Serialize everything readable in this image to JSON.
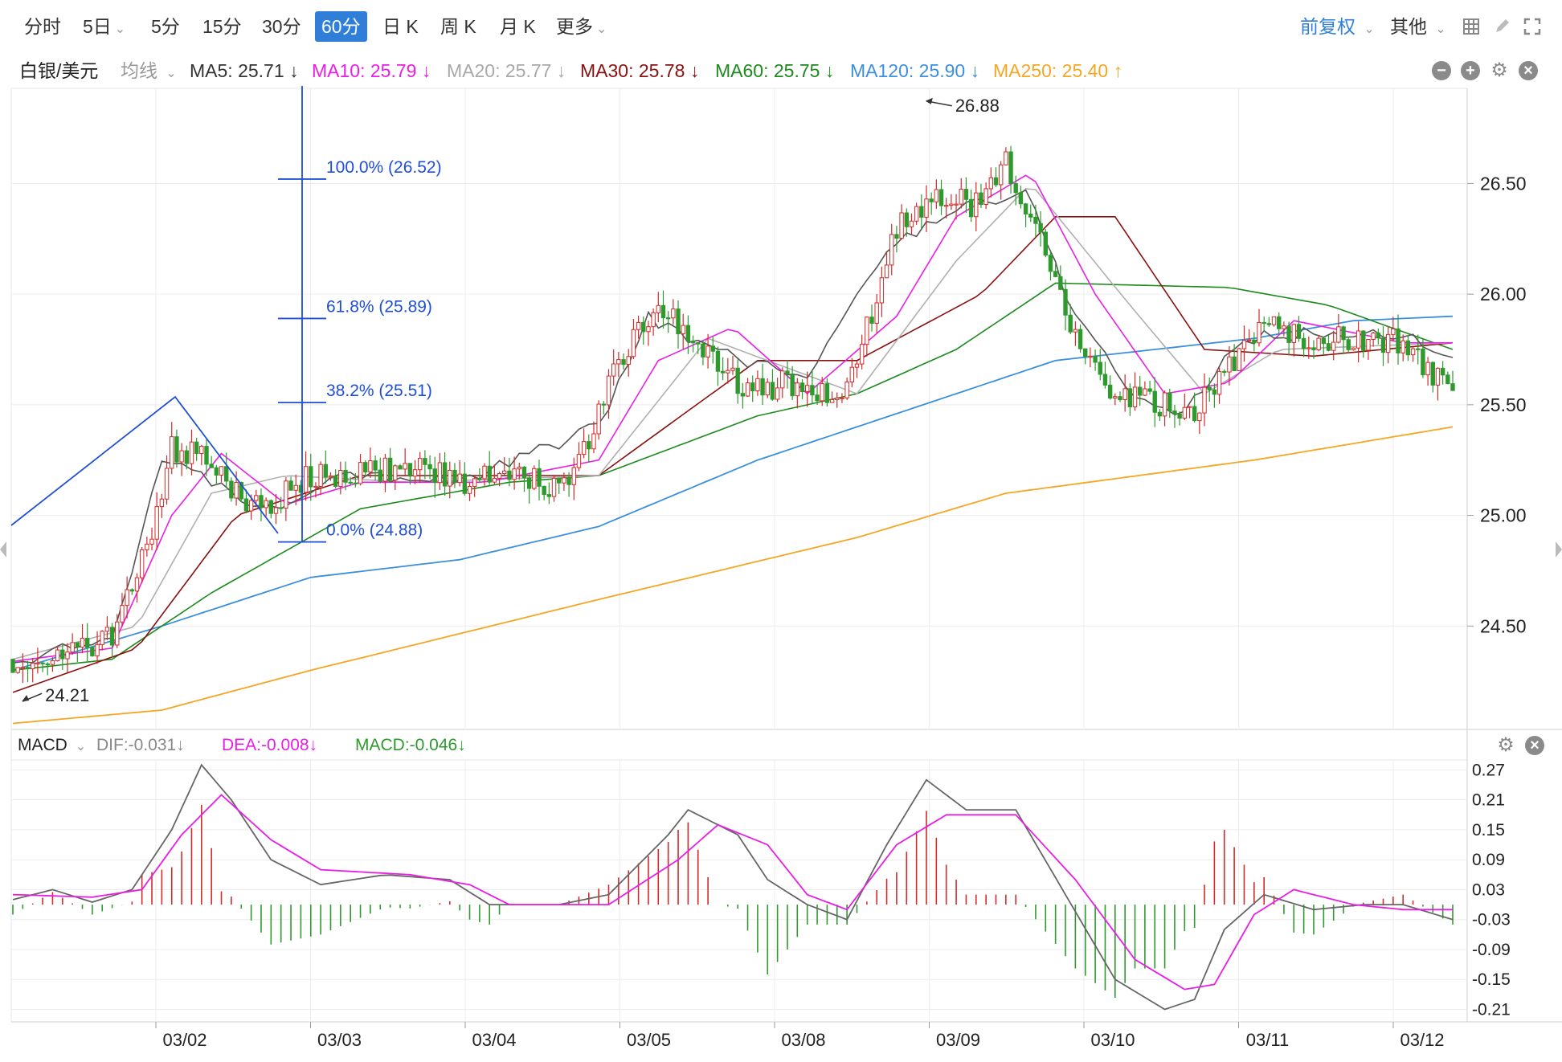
{
  "toolbar": {
    "periods": [
      {
        "label": "分时",
        "dropdown": false
      },
      {
        "label": "5日",
        "dropdown": true
      },
      {
        "label": "5分",
        "dropdown": false
      },
      {
        "label": "15分",
        "dropdown": false
      },
      {
        "label": "30分",
        "dropdown": false
      },
      {
        "label": "60分",
        "dropdown": false,
        "active": true
      },
      {
        "label": "日 K",
        "dropdown": false
      },
      {
        "label": "周 K",
        "dropdown": false
      },
      {
        "label": "月 K",
        "dropdown": false
      },
      {
        "label": "更多",
        "dropdown": true
      }
    ],
    "adjust_label": "前复权",
    "other_label": "其他",
    "icons": [
      "grid-icon",
      "pen-icon",
      "fullscreen-icon"
    ]
  },
  "legend": {
    "symbol": "白银/美元",
    "ma_type": "均线",
    "items": [
      {
        "text": "MA5: 25.71 ↓",
        "color": "#333333"
      },
      {
        "text": "MA10: 25.79 ↓",
        "color": "#e91ee6"
      },
      {
        "text": "MA20: 25.77 ↓",
        "color": "#a8a8a8"
      },
      {
        "text": "MA30: 25.78 ↓",
        "color": "#8b1010"
      },
      {
        "text": "MA60: 25.75 ↓",
        "color": "#1c8a1c"
      },
      {
        "text": "MA120: 25.90 ↓",
        "color": "#3b8fdc"
      },
      {
        "text": "MA250: 25.40 ↑",
        "color": "#f5a623"
      }
    ]
  },
  "macd_legend": {
    "name": "MACD",
    "items": [
      {
        "text": "DIF:-0.031↓",
        "color": "#888888"
      },
      {
        "text": "DEA:-0.008↓",
        "color": "#e91ee6"
      },
      {
        "text": "MACD:-0.046↓",
        "color": "#2e9a2e"
      }
    ]
  },
  "chart_data": [
    {
      "type": "candlestick",
      "title": "白银/美元 60分",
      "x_dates": [
        "03/02",
        "03/03",
        "03/04",
        "03/05",
        "03/08",
        "03/09",
        "03/10",
        "03/11",
        "03/12"
      ],
      "y_ticks": [
        "26.50",
        "26.00",
        "25.50",
        "25.00",
        "24.50"
      ],
      "ylim": [
        24.04,
        26.93
      ],
      "annotations": {
        "high": "26.88",
        "low": "24.21"
      },
      "fibonacci": [
        {
          "label": "100.0% (26.52)",
          "value": 26.52
        },
        {
          "label": "61.8% (25.89)",
          "value": 25.89
        },
        {
          "label": "38.2% (25.51)",
          "value": 25.51
        },
        {
          "label": "0.0% (24.88)",
          "value": 24.88
        }
      ],
      "approx_close_path": [
        [
          0,
          24.35
        ],
        [
          10,
          24.36
        ],
        [
          20,
          24.45
        ],
        [
          27,
          24.85
        ],
        [
          32,
          25.3
        ],
        [
          38,
          25.28
        ],
        [
          47,
          25.05
        ],
        [
          52,
          25.05
        ],
        [
          60,
          25.18
        ],
        [
          70,
          25.18
        ],
        [
          80,
          25.22
        ],
        [
          92,
          25.15
        ],
        [
          100,
          25.22
        ],
        [
          110,
          25.12
        ],
        [
          115,
          25.3
        ],
        [
          122,
          25.7
        ],
        [
          130,
          25.95
        ],
        [
          138,
          25.8
        ],
        [
          148,
          25.55
        ],
        [
          156,
          25.6
        ],
        [
          168,
          25.55
        ],
        [
          178,
          26.3
        ],
        [
          186,
          26.45
        ],
        [
          194,
          26.4
        ],
        [
          200,
          26.6
        ],
        [
          206,
          26.3
        ],
        [
          214,
          25.8
        ],
        [
          222,
          25.55
        ],
        [
          230,
          25.5
        ],
        [
          238,
          25.48
        ],
        [
          246,
          25.7
        ],
        [
          252,
          25.85
        ],
        [
          262,
          25.8
        ],
        [
          272,
          25.8
        ],
        [
          280,
          25.78
        ],
        [
          290,
          25.55
        ]
      ],
      "ma_lines": {
        "MA5": [
          [
            0,
            24.33
          ],
          [
            20,
            24.45
          ],
          [
            30,
            25.25
          ],
          [
            40,
            25.15
          ],
          [
            52,
            25.02
          ],
          [
            65,
            25.2
          ],
          [
            90,
            25.15
          ],
          [
            118,
            25.4
          ],
          [
            128,
            25.9
          ],
          [
            140,
            25.75
          ],
          [
            160,
            25.62
          ],
          [
            176,
            26.2
          ],
          [
            190,
            26.4
          ],
          [
            205,
            26.45
          ],
          [
            212,
            26.0
          ],
          [
            225,
            25.55
          ],
          [
            235,
            25.45
          ],
          [
            248,
            25.8
          ],
          [
            260,
            25.82
          ],
          [
            280,
            25.82
          ],
          [
            290,
            25.7
          ]
        ],
        "MA10": [
          [
            0,
            24.34
          ],
          [
            20,
            24.4
          ],
          [
            32,
            25.0
          ],
          [
            42,
            25.28
          ],
          [
            55,
            25.05
          ],
          [
            70,
            25.15
          ],
          [
            95,
            25.15
          ],
          [
            118,
            25.25
          ],
          [
            130,
            25.7
          ],
          [
            145,
            25.85
          ],
          [
            160,
            25.55
          ],
          [
            178,
            25.9
          ],
          [
            190,
            26.35
          ],
          [
            205,
            26.55
          ],
          [
            218,
            26.0
          ],
          [
            232,
            25.55
          ],
          [
            245,
            25.6
          ],
          [
            258,
            25.88
          ],
          [
            280,
            25.78
          ],
          [
            290,
            25.78
          ]
        ],
        "MA20": [
          [
            0,
            24.35
          ],
          [
            25,
            24.5
          ],
          [
            40,
            25.1
          ],
          [
            55,
            25.18
          ],
          [
            80,
            25.15
          ],
          [
            118,
            25.18
          ],
          [
            140,
            25.8
          ],
          [
            170,
            25.55
          ],
          [
            190,
            26.15
          ],
          [
            205,
            26.5
          ],
          [
            225,
            25.95
          ],
          [
            240,
            25.55
          ],
          [
            255,
            25.75
          ],
          [
            290,
            25.78
          ]
        ],
        "MA30": [
          [
            0,
            24.2
          ],
          [
            25,
            24.4
          ],
          [
            45,
            25.0
          ],
          [
            70,
            25.18
          ],
          [
            118,
            25.18
          ],
          [
            150,
            25.7
          ],
          [
            170,
            25.7
          ],
          [
            195,
            26.0
          ],
          [
            210,
            26.35
          ],
          [
            222,
            26.35
          ],
          [
            240,
            25.75
          ],
          [
            262,
            25.72
          ],
          [
            290,
            25.78
          ]
        ],
        "MA60": [
          [
            0,
            24.3
          ],
          [
            20,
            24.35
          ],
          [
            40,
            24.65
          ],
          [
            70,
            25.03
          ],
          [
            100,
            25.15
          ],
          [
            118,
            25.18
          ],
          [
            150,
            25.45
          ],
          [
            170,
            25.55
          ],
          [
            190,
            25.75
          ],
          [
            210,
            26.05
          ],
          [
            245,
            26.03
          ],
          [
            265,
            25.95
          ],
          [
            290,
            25.75
          ]
        ],
        "MA120": [
          [
            0,
            24.3
          ],
          [
            30,
            24.5
          ],
          [
            60,
            24.72
          ],
          [
            90,
            24.8
          ],
          [
            118,
            24.95
          ],
          [
            150,
            25.25
          ],
          [
            190,
            25.55
          ],
          [
            210,
            25.7
          ],
          [
            250,
            25.8
          ],
          [
            270,
            25.88
          ],
          [
            290,
            25.9
          ]
        ],
        "MA250": [
          [
            0,
            24.06
          ],
          [
            30,
            24.12
          ],
          [
            60,
            24.3
          ],
          [
            118,
            24.62
          ],
          [
            170,
            24.9
          ],
          [
            200,
            25.1
          ],
          [
            250,
            25.25
          ],
          [
            290,
            25.4
          ]
        ]
      }
    },
    {
      "type": "macd",
      "title": "MACD",
      "y_ticks": [
        "0.27",
        "0.21",
        "0.15",
        "0.09",
        "0.03",
        "-0.03",
        "-0.09",
        "-0.15",
        "-0.21"
      ],
      "ylim": [
        -0.235,
        0.29
      ],
      "DIF_last": -0.031,
      "DEA_last": -0.008,
      "MACD_last": -0.046,
      "dif_path": [
        [
          0,
          0.01
        ],
        [
          8,
          0.03
        ],
        [
          16,
          0.005
        ],
        [
          24,
          0.03
        ],
        [
          32,
          0.15
        ],
        [
          38,
          0.28
        ],
        [
          44,
          0.21
        ],
        [
          52,
          0.09
        ],
        [
          62,
          0.04
        ],
        [
          75,
          0.06
        ],
        [
          88,
          0.05
        ],
        [
          96,
          0.0
        ],
        [
          110,
          0.0
        ],
        [
          120,
          0.02
        ],
        [
          132,
          0.14
        ],
        [
          136,
          0.19
        ],
        [
          146,
          0.14
        ],
        [
          152,
          0.05
        ],
        [
          160,
          0.0
        ],
        [
          168,
          -0.03
        ],
        [
          176,
          0.12
        ],
        [
          184,
          0.25
        ],
        [
          192,
          0.19
        ],
        [
          202,
          0.19
        ],
        [
          212,
          0.02
        ],
        [
          222,
          -0.15
        ],
        [
          232,
          -0.21
        ],
        [
          238,
          -0.19
        ],
        [
          244,
          -0.05
        ],
        [
          252,
          0.02
        ],
        [
          262,
          -0.01
        ],
        [
          272,
          0.0
        ],
        [
          280,
          0.0
        ],
        [
          290,
          -0.03
        ]
      ],
      "dea_path": [
        [
          0,
          0.02
        ],
        [
          16,
          0.015
        ],
        [
          26,
          0.03
        ],
        [
          34,
          0.14
        ],
        [
          42,
          0.22
        ],
        [
          52,
          0.13
        ],
        [
          62,
          0.07
        ],
        [
          80,
          0.06
        ],
        [
          92,
          0.04
        ],
        [
          100,
          0.0
        ],
        [
          120,
          0.0
        ],
        [
          134,
          0.09
        ],
        [
          142,
          0.16
        ],
        [
          152,
          0.12
        ],
        [
          160,
          0.02
        ],
        [
          168,
          -0.01
        ],
        [
          178,
          0.12
        ],
        [
          188,
          0.18
        ],
        [
          202,
          0.18
        ],
        [
          214,
          0.05
        ],
        [
          226,
          -0.11
        ],
        [
          236,
          -0.17
        ],
        [
          242,
          -0.16
        ],
        [
          250,
          -0.02
        ],
        [
          258,
          0.03
        ],
        [
          270,
          0.0
        ],
        [
          280,
          -0.01
        ],
        [
          290,
          -0.01
        ]
      ]
    }
  ]
}
